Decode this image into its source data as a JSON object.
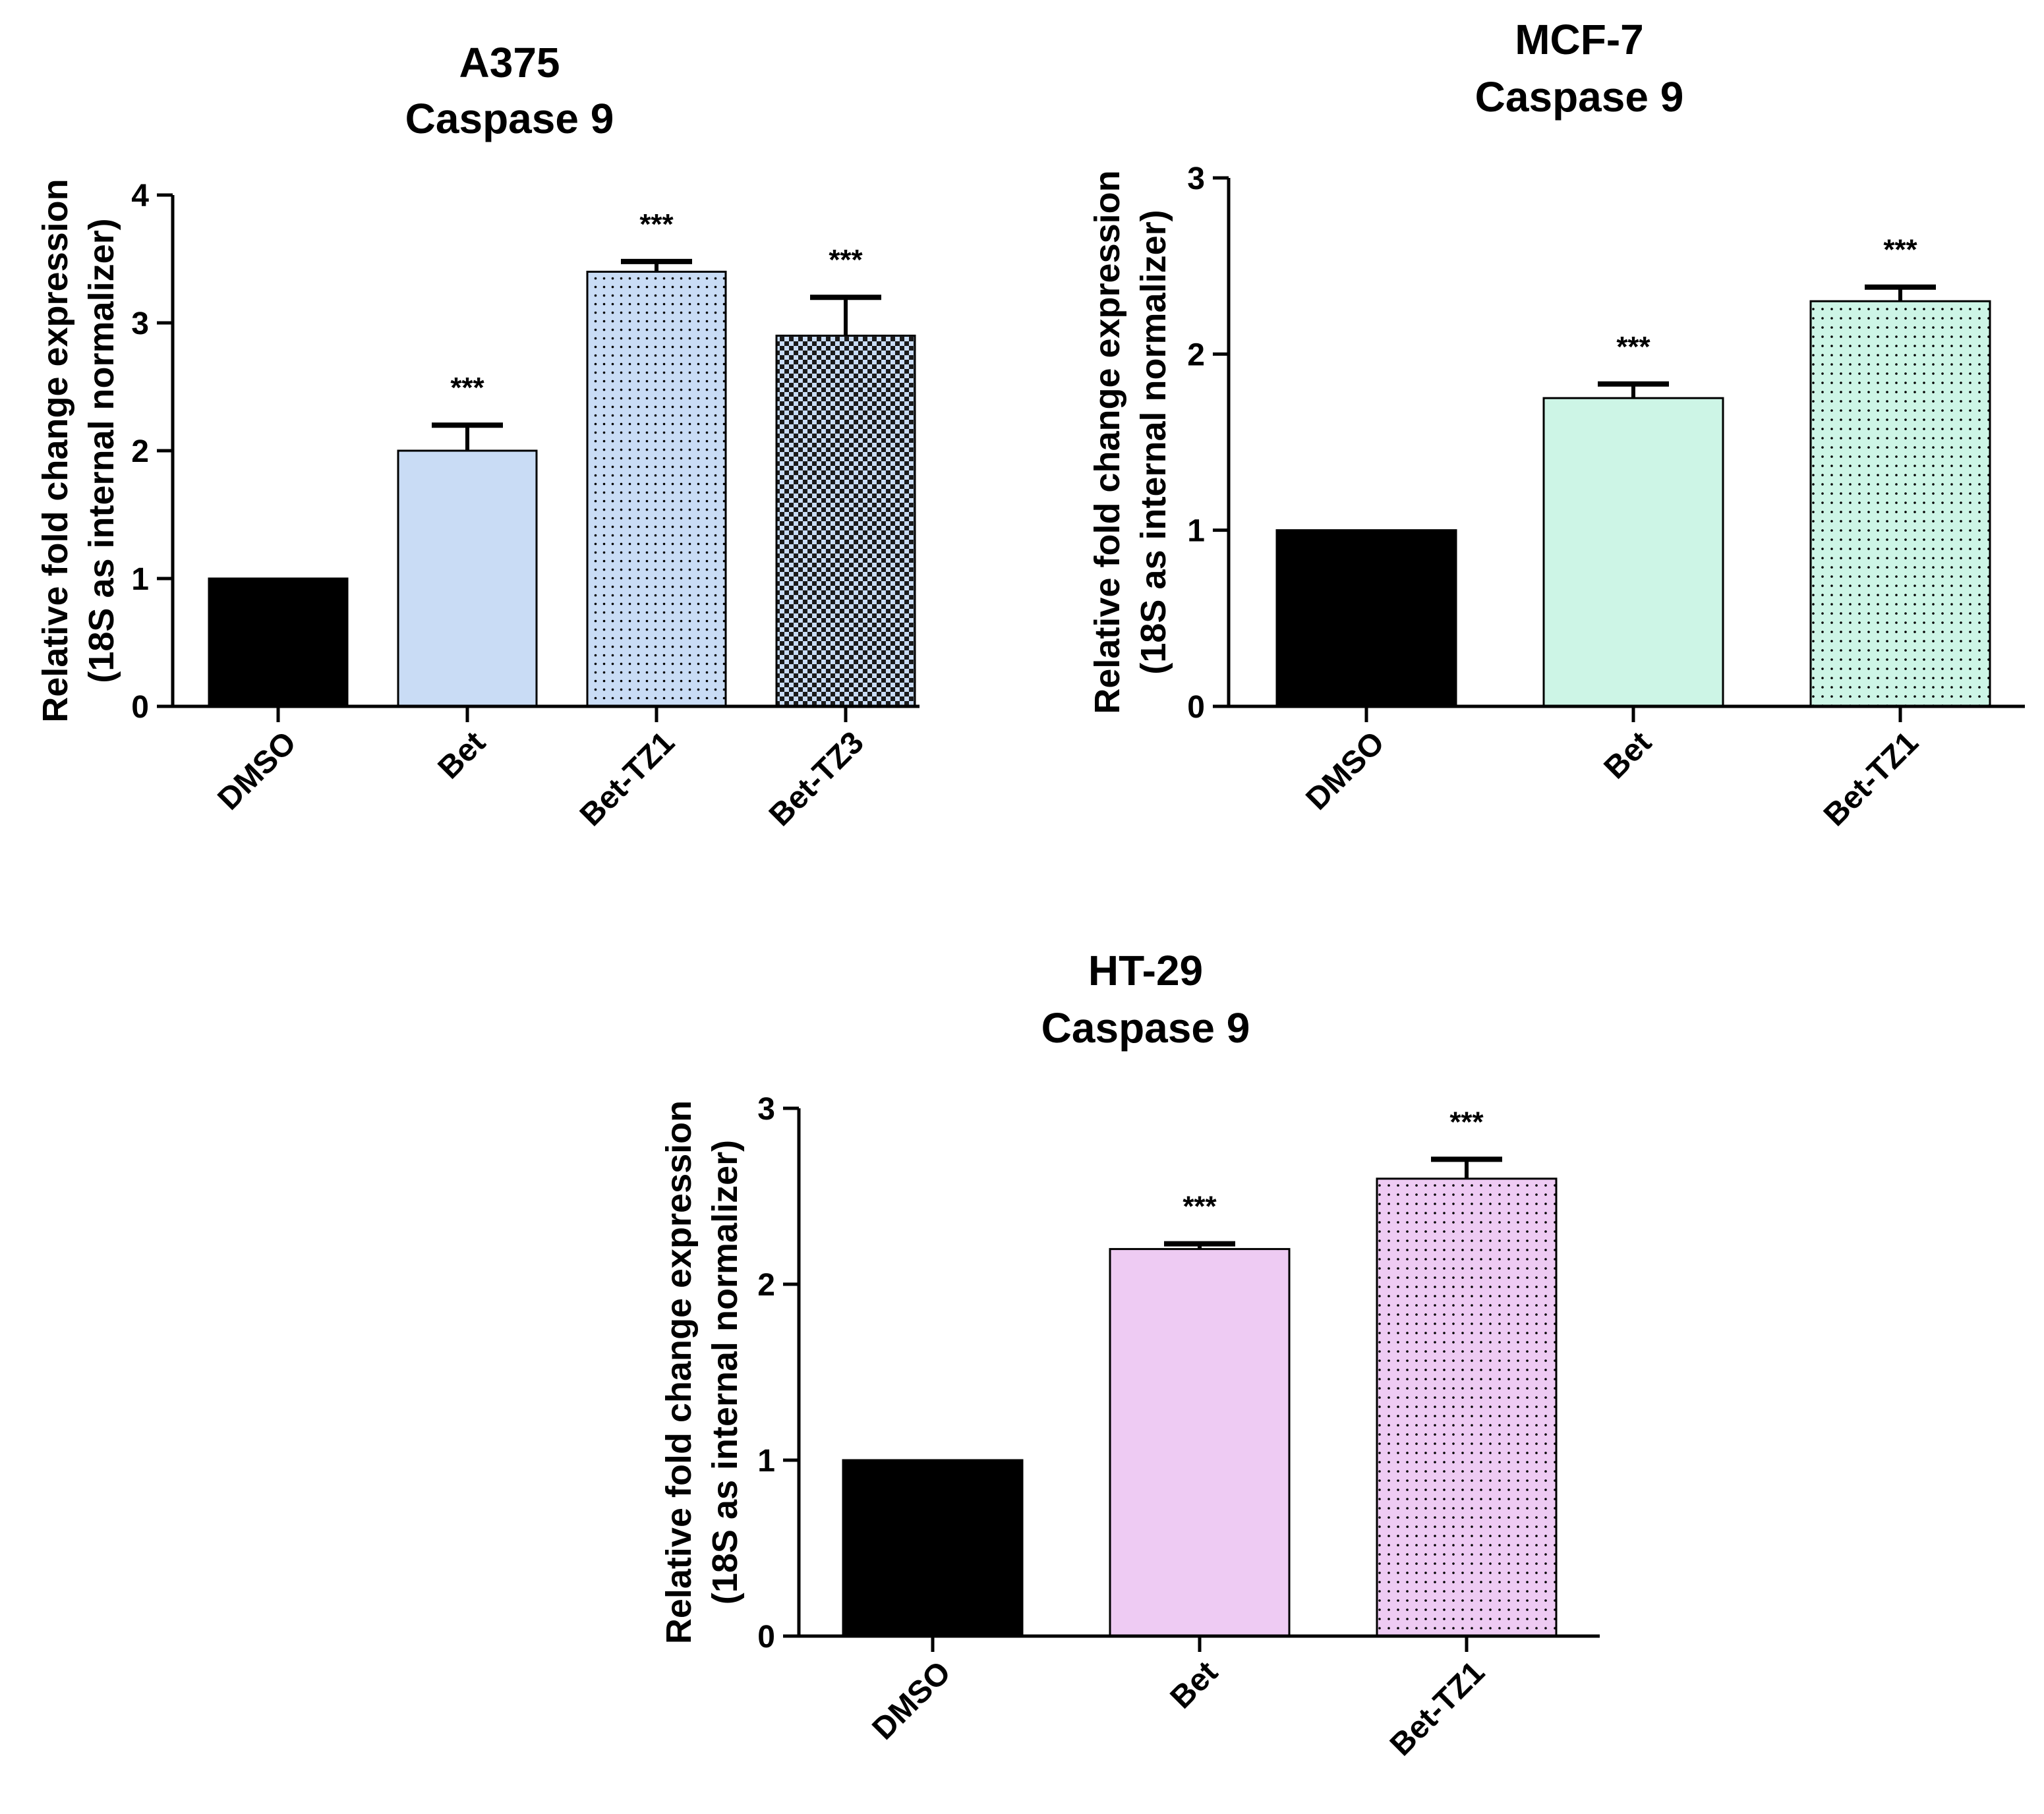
{
  "chart_data": [
    {
      "type": "bar",
      "title": [
        "A375",
        "Caspase 9"
      ],
      "ylabel": [
        "Relative fold change expression",
        "(18S as internal normalizer)"
      ],
      "xlabel": "",
      "ylim": [
        0,
        4
      ],
      "yticks": [
        0,
        1,
        2,
        3,
        4
      ],
      "categories": [
        "DMSO",
        "Bet",
        "Bet-TZ1",
        "Bet-TZ3"
      ],
      "values": [
        1.0,
        2.0,
        3.4,
        2.9
      ],
      "errors": [
        0.0,
        0.2,
        0.08,
        0.3
      ],
      "significance": [
        "",
        "***",
        "***",
        "***"
      ],
      "colors": [
        "#000000",
        "#c9dcf5",
        "#c9dcf5",
        "#c9dcf5"
      ],
      "patterns": [
        "solid",
        "solid",
        "dots",
        "checker"
      ]
    },
    {
      "type": "bar",
      "title": [
        "MCF-7",
        "Caspase 9"
      ],
      "ylabel": [
        "Relative fold change expression",
        "(18S as internal normalizer)"
      ],
      "xlabel": "",
      "ylim": [
        0,
        3
      ],
      "yticks": [
        0,
        1,
        2,
        3
      ],
      "categories": [
        "DMSO",
        "Bet",
        "Bet-TZ1"
      ],
      "values": [
        1.0,
        1.75,
        2.3
      ],
      "errors": [
        0.0,
        0.08,
        0.08
      ],
      "significance": [
        "",
        "***",
        "***"
      ],
      "colors": [
        "#000000",
        "#cdf5e6",
        "#cdf5e6"
      ],
      "patterns": [
        "solid",
        "solid",
        "dots"
      ]
    },
    {
      "type": "bar",
      "title": [
        "HT-29",
        "Caspase 9"
      ],
      "ylabel": [
        "Relative fold change expression",
        "(18S as internal normalizer)"
      ],
      "xlabel": "",
      "ylim": [
        0,
        3
      ],
      "yticks": [
        0,
        1,
        2,
        3
      ],
      "categories": [
        "DMSO",
        "Bet",
        "Bet-TZ1"
      ],
      "values": [
        1.0,
        2.2,
        2.6
      ],
      "errors": [
        0.0,
        0.03,
        0.11
      ],
      "significance": [
        "",
        "***",
        "***"
      ],
      "colors": [
        "#000000",
        "#eecbf3",
        "#eecbf3"
      ],
      "patterns": [
        "solid",
        "solid",
        "dots"
      ]
    }
  ]
}
